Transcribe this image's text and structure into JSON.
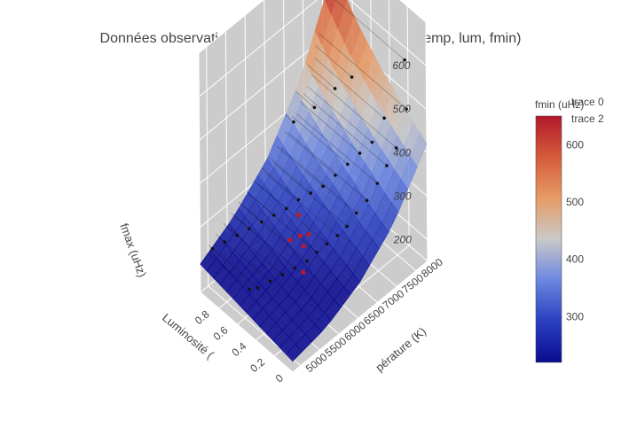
{
  "chart_data": {
    "type": "surface3d",
    "title": "Données observationnelles avec fréquence filtrée (temp, lum, fmin)",
    "scene": {
      "xaxis": {
        "label": "Luminosité (",
        "ticks": [
          "0",
          "0.2",
          "0.4",
          "0.6",
          "0.8"
        ],
        "range": [
          0,
          1
        ]
      },
      "yaxis": {
        "label": "Température (K)",
        "visible_label": "pérature (K)",
        "ticks": [
          "5000",
          "5500",
          "6000",
          "6500",
          "7000",
          "7500",
          "8000"
        ],
        "range": [
          4800,
          8300
        ]
      },
      "zaxis": {
        "label": "fmax (uHz)",
        "ticks": [
          "200",
          "300",
          "400",
          "500",
          "600"
        ],
        "range": [
          150,
          700
        ]
      },
      "background": "#cccccc",
      "grid": true
    },
    "colorbar": {
      "title": "fmin (uHz)",
      "ticks": [
        "300",
        "400",
        "500",
        "600"
      ],
      "range": [
        220,
        650
      ],
      "colorscale": [
        "#0b0b8f",
        "#2a3fbf",
        "#6b86e0",
        "#c9c9c9",
        "#e79b66",
        "#d45c3a",
        "#b2182b"
      ]
    },
    "legend": {
      "entries": [
        "trace 0",
        "trace 2"
      ],
      "position": "top-right"
    },
    "surface_grid": {
      "lum": [
        0,
        0.25,
        0.5,
        0.75,
        1.0
      ],
      "temp": [
        4800,
        5675,
        6550,
        7425,
        8300
      ],
      "fmax": [
        [
          175,
          190,
          230,
          300,
          420
        ],
        [
          185,
          205,
          250,
          330,
          460
        ],
        [
          195,
          220,
          275,
          365,
          505
        ],
        [
          205,
          240,
          300,
          405,
          560
        ],
        [
          215,
          260,
          330,
          450,
          640
        ]
      ]
    },
    "points": [
      {
        "lum": 0.05,
        "temp": 7900,
        "fmax": 520,
        "fmin": 230
      },
      {
        "lum": 0.08,
        "temp": 7700,
        "fmax": 440,
        "fmin": 240
      },
      {
        "lum": 0.1,
        "temp": 7500,
        "fmax": 410,
        "fmin": 250
      },
      {
        "lum": 0.12,
        "temp": 7300,
        "fmax": 380,
        "fmin": 235
      },
      {
        "lum": 0.15,
        "temp": 7100,
        "fmax": 350,
        "fmin": 245
      },
      {
        "lum": 0.18,
        "temp": 6900,
        "fmax": 330,
        "fmin": 250
      },
      {
        "lum": 0.2,
        "temp": 6700,
        "fmax": 310,
        "fmin": 240
      },
      {
        "lum": 0.22,
        "temp": 6500,
        "fmax": 300,
        "fmin": 260
      },
      {
        "lum": 0.25,
        "temp": 6300,
        "fmax": 290,
        "fmin": 250
      },
      {
        "lum": 0.28,
        "temp": 6100,
        "fmax": 280,
        "fmin": 245
      },
      {
        "lum": 0.3,
        "temp": 5900,
        "fmax": 270,
        "fmin": 238
      },
      {
        "lum": 0.35,
        "temp": 5700,
        "fmax": 260,
        "fmin": 230
      },
      {
        "lum": 0.4,
        "temp": 5500,
        "fmax": 250,
        "fmin": 240
      },
      {
        "lum": 0.45,
        "temp": 5300,
        "fmax": 240,
        "fmin": 235
      },
      {
        "lum": 0.5,
        "temp": 5100,
        "fmax": 230,
        "fmin": 230
      },
      {
        "lum": 0.55,
        "temp": 5000,
        "fmax": 225,
        "fmin": 228
      },
      {
        "lum": 0.3,
        "temp": 7600,
        "fmax": 420,
        "fmin": 300
      },
      {
        "lum": 0.35,
        "temp": 7400,
        "fmax": 400,
        "fmin": 290
      },
      {
        "lum": 0.4,
        "temp": 7200,
        "fmax": 380,
        "fmin": 280
      },
      {
        "lum": 0.45,
        "temp": 7000,
        "fmax": 360,
        "fmin": 270
      },
      {
        "lum": 0.5,
        "temp": 6800,
        "fmax": 340,
        "fmin": 260
      },
      {
        "lum": 0.55,
        "temp": 6600,
        "fmax": 330,
        "fmin": 255
      },
      {
        "lum": 0.6,
        "temp": 6400,
        "fmax": 320,
        "fmin": 250
      },
      {
        "lum": 0.65,
        "temp": 6200,
        "fmax": 305,
        "fmin": 245
      },
      {
        "lum": 0.7,
        "temp": 6000,
        "fmax": 295,
        "fmin": 240
      },
      {
        "lum": 0.75,
        "temp": 5800,
        "fmax": 285,
        "fmin": 235
      },
      {
        "lum": 0.8,
        "temp": 5600,
        "fmax": 275,
        "fmin": 230
      },
      {
        "lum": 0.85,
        "temp": 5400,
        "fmax": 265,
        "fmin": 228
      },
      {
        "lum": 0.9,
        "temp": 5200,
        "fmax": 255,
        "fmin": 225
      },
      {
        "lum": 0.95,
        "temp": 5000,
        "fmax": 245,
        "fmin": 222
      },
      {
        "lum": 0.15,
        "temp": 8100,
        "fmax": 600,
        "fmin": 600
      },
      {
        "lum": 0.25,
        "temp": 7800,
        "fmax": 470,
        "fmin": 420
      },
      {
        "lum": 0.6,
        "temp": 7800,
        "fmax": 500,
        "fmin": 350
      },
      {
        "lum": 0.7,
        "temp": 7600,
        "fmax": 470,
        "fmin": 320
      },
      {
        "lum": 0.8,
        "temp": 7300,
        "fmax": 430,
        "fmin": 300
      },
      {
        "lum": 0.9,
        "temp": 7000,
        "fmax": 400,
        "fmin": 280
      }
    ],
    "highlight_points": [
      {
        "lum": 0.45,
        "temp": 6300,
        "fmax": 275,
        "fmin": 280
      },
      {
        "lum": 0.5,
        "temp": 6200,
        "fmax": 270,
        "fmin": 275
      },
      {
        "lum": 0.55,
        "temp": 6050,
        "fmax": 262,
        "fmin": 270
      },
      {
        "lum": 0.42,
        "temp": 6100,
        "fmax": 268,
        "fmin": 265
      },
      {
        "lum": 0.6,
        "temp": 6400,
        "fmax": 285,
        "fmin": 285
      },
      {
        "lum": 0.3,
        "temp": 5800,
        "fmax": 252,
        "fmin": 260
      }
    ]
  }
}
